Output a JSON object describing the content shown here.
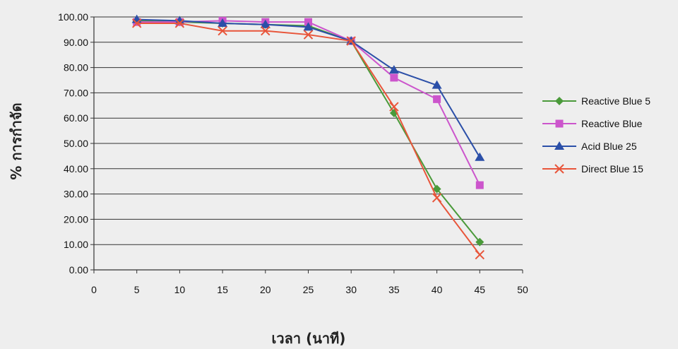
{
  "chart_data": {
    "type": "line",
    "xlabel": "เวลา (นาที)",
    "ylabel": "% การกำจัด",
    "xlim": [
      0,
      50
    ],
    "ylim": [
      0,
      100
    ],
    "x_ticks": [
      "0",
      "5",
      "10",
      "15",
      "20",
      "25",
      "30",
      "35",
      "40",
      "45",
      "50"
    ],
    "y_ticks": [
      "0.00",
      "10.00",
      "20.00",
      "30.00",
      "40.00",
      "50.00",
      "60.00",
      "70.00",
      "80.00",
      "90.00",
      "100.00"
    ],
    "grid": "horizontal",
    "legend_position": "right",
    "series": [
      {
        "name": "Reactive Blue 5",
        "color": "#4a9a3a",
        "marker": "diamond",
        "x": [
          5,
          10,
          15,
          20,
          25,
          30,
          35,
          40,
          45
        ],
        "y": [
          98.5,
          98.0,
          97.5,
          97.0,
          96.5,
          90.5,
          62.0,
          32.0,
          11.0
        ]
      },
      {
        "name": "Reactive Blue",
        "color": "#cc55cc",
        "marker": "square",
        "x": [
          5,
          10,
          15,
          20,
          25,
          30,
          35,
          40,
          45
        ],
        "y": [
          98.0,
          98.0,
          98.5,
          98.0,
          98.0,
          90.5,
          76.0,
          67.5,
          33.5
        ]
      },
      {
        "name": "Acid Blue 25",
        "color": "#2b4fa8",
        "marker": "triangle",
        "x": [
          5,
          10,
          15,
          20,
          25,
          30,
          35,
          40,
          45
        ],
        "y": [
          99.0,
          98.5,
          97.5,
          97.0,
          96.0,
          90.5,
          79.0,
          73.0,
          44.5
        ]
      },
      {
        "name": "Direct Blue 15",
        "color": "#e8553a",
        "marker": "x",
        "x": [
          5,
          10,
          15,
          20,
          25,
          30,
          35,
          40,
          45
        ],
        "y": [
          97.5,
          97.5,
          94.5,
          94.5,
          93.0,
          90.5,
          64.5,
          28.5,
          6.0
        ]
      }
    ]
  }
}
